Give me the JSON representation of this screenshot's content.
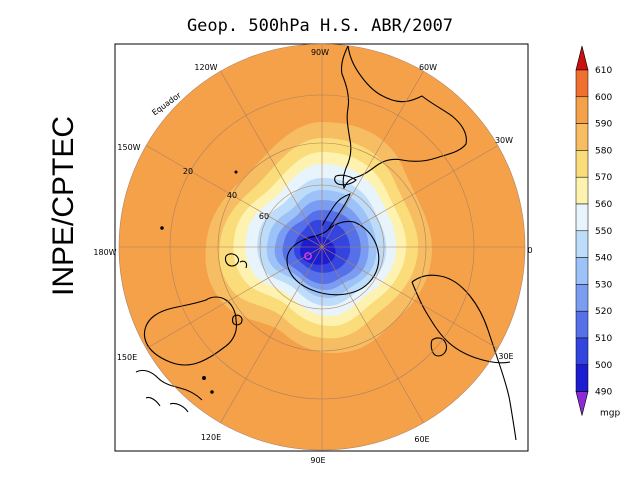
{
  "title": "Geop. 500hPa H.S. ABR/2007",
  "side_label": "INPE/CPTEC",
  "longitude_labels": {
    "top": "90W",
    "upper_left": "120W",
    "upper_right": "60W",
    "left_upper": "150W",
    "right_upper": "30W",
    "left": "180W",
    "right": "0",
    "left_lower": "150E",
    "right_lower": "30E",
    "lower_left": "120E",
    "lower_right": "60E",
    "bottom": "90E"
  },
  "latitude_labels": [
    "20",
    "40",
    "60"
  ],
  "place_label": "Equador",
  "colorbar": {
    "unit": "mgp",
    "levels": [
      "610",
      "600",
      "590",
      "580",
      "570",
      "560",
      "550",
      "540",
      "530",
      "520",
      "510",
      "500",
      "490"
    ],
    "colors": [
      "#cc1010",
      "#f07030",
      "#f4a14a",
      "#f7bd63",
      "#fbdc7a",
      "#fdf2b0",
      "#e8f4fc",
      "#bcdcfa",
      "#9cc2f8",
      "#7a9df2",
      "#5670ea",
      "#3444de",
      "#1c1cd0",
      "#8b2ad6"
    ]
  },
  "field_colors": {
    "c580": "#f4a14a",
    "c570": "#f7bd63",
    "c560": "#fbdc7a",
    "c550": "#fdf2b0",
    "c540": "#e8f4fc",
    "c530": "#bcdcfa",
    "c520": "#9cc2f8",
    "c510": "#7a9df2",
    "c500": "#5670ea",
    "c490": "#3444de",
    "c480": "#1c1cd0",
    "grid": "#b08060",
    "coast": "#000000",
    "low_marker": "#e040e0"
  }
}
